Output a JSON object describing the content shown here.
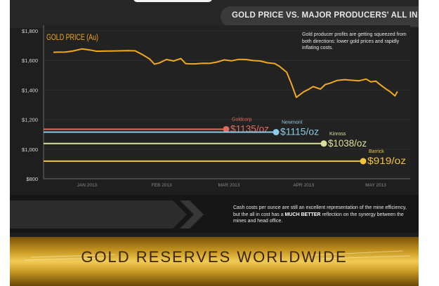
{
  "header": {
    "title": "GOLD PRICE VS. MAJOR PRODUCERS' ALL IN COST"
  },
  "annotation": "Gold producer profits are getting squeezed from both directions: lower gold prices and rapidly inflating costs.",
  "footer_note": {
    "before": "Cash costs per ounce are still an excellent representation of the mine efficiency, but the all in cost has a ",
    "bold": "MUCH BETTER",
    "after": " reflection on the synergy between the mines and head office."
  },
  "banner": {
    "title": "GOLD RESERVES WORLDWIDE"
  },
  "chart_data": {
    "type": "line",
    "title": "GOLD PRICE (Au)",
    "y_ticks": [
      "$1,800",
      "$1,600",
      "$1,400",
      "$1,200",
      "$1,000",
      "$800"
    ],
    "x_ticks": [
      "JAN 2013",
      "FEB 2013",
      "MAR 2013",
      "APR 2013",
      "MAY 2013"
    ],
    "ylim": [
      800,
      1800
    ],
    "series": [
      {
        "name": "GOLD PRICE (Au)",
        "color": "#f2a922",
        "x": [
          "2013-01-01",
          "2013-01-03",
          "2013-01-06",
          "2013-01-09",
          "2013-01-13",
          "2013-01-16",
          "2013-01-19",
          "2013-01-22",
          "2013-01-25",
          "2013-01-29",
          "2013-02-01",
          "2013-02-04",
          "2013-02-07",
          "2013-02-10",
          "2013-02-12",
          "2013-02-14",
          "2013-02-17",
          "2013-02-20",
          "2013-02-23",
          "2013-02-25",
          "2013-02-27",
          "2013-03-01",
          "2013-03-04",
          "2013-03-07",
          "2013-03-10",
          "2013-03-13",
          "2013-03-16",
          "2013-03-19",
          "2013-03-22",
          "2013-03-25",
          "2013-03-28",
          "2013-03-31",
          "2013-04-03",
          "2013-04-05",
          "2013-04-08",
          "2013-04-10",
          "2013-04-12",
          "2013-04-15",
          "2013-04-17",
          "2013-04-19",
          "2013-04-22",
          "2013-04-24",
          "2013-04-26",
          "2013-04-29",
          "2013-05-02",
          "2013-05-05",
          "2013-05-08",
          "2013-05-11",
          "2013-05-13",
          "2013-05-15",
          "2013-05-17",
          "2013-05-19",
          "2013-05-21",
          "2013-05-23",
          "2013-05-24"
        ],
        "values": [
          1655,
          1656,
          1657,
          1663,
          1678,
          1671,
          1662,
          1663,
          1664,
          1665,
          1666,
          1665,
          1640,
          1610,
          1575,
          1583,
          1606,
          1596,
          1613,
          1578,
          1577,
          1577,
          1581,
          1580,
          1589,
          1604,
          1597,
          1607,
          1606,
          1599,
          1596,
          1584,
          1579,
          1560,
          1520,
          1440,
          1350,
          1387,
          1404,
          1423,
          1406,
          1437,
          1446,
          1465,
          1470,
          1466,
          1462,
          1474,
          1455,
          1460,
          1434,
          1410,
          1388,
          1360,
          1390
        ]
      }
    ],
    "producers": [
      {
        "name": "Goldcorp",
        "cost": 1135,
        "label": "$1135/oz",
        "color": "#e36b5e"
      },
      {
        "name": "Newmont",
        "cost": 1115,
        "label": "$1115/oz",
        "color": "#8ccbe6"
      },
      {
        "name": "Kinross",
        "cost": 1038,
        "label": "$1038/oz",
        "color": "#d9e29b"
      },
      {
        "name": "Barrick",
        "cost": 919,
        "label": "$919/oz",
        "color": "#f2c53d"
      }
    ]
  }
}
